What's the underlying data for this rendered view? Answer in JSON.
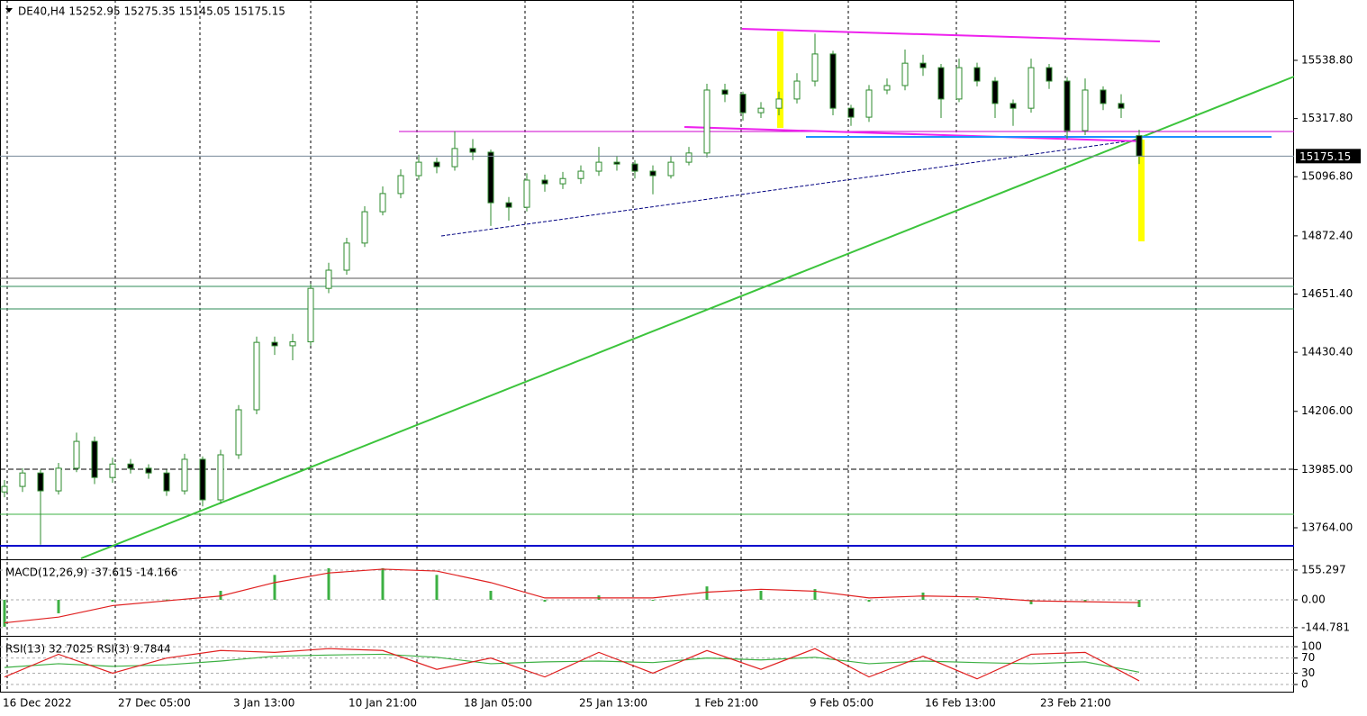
{
  "chart_data": [
    {
      "type": "candlestick",
      "title": "DE40,H4  15252.95 15275.35 15145.05 15175.15",
      "x_labels": [
        "16 Dec 2022",
        "27 Dec 05:00",
        "3 Jan 13:00",
        "10 Jan 21:00",
        "18 Jan 05:00",
        "25 Jan 13:00",
        "1 Feb 21:00",
        "9 Feb 05:00",
        "16 Feb 13:00",
        "23 Feb 21:00"
      ],
      "open": [
        13900,
        13921,
        13972,
        13904,
        13990,
        14092,
        13955,
        14006,
        13990,
        13972,
        13904,
        14024,
        13870,
        14041,
        14212,
        14468,
        14455,
        14470,
        14673,
        14742,
        14845,
        14964,
        15033,
        15101,
        15152,
        15135,
        15204,
        15190,
        14998,
        14981,
        15084,
        15070,
        15090,
        15118,
        15152,
        15145,
        15118,
        15101,
        15152,
        15187,
        15426,
        15410,
        15340,
        15357,
        15392,
        15460,
        15563,
        15357,
        15323,
        15426,
        15443,
        15528,
        15511,
        15392,
        15511,
        15460,
        15375,
        15357,
        15511,
        15460,
        15272,
        15426,
        15375,
        15252.95
      ],
      "high": [
        13945,
        13990,
        13985,
        14010,
        14125,
        14110,
        14030,
        14025,
        14005,
        13985,
        14045,
        14035,
        14060,
        14230,
        14490,
        14490,
        14500,
        14690,
        14770,
        14865,
        14985,
        15060,
        15125,
        15180,
        15170,
        15270,
        15240,
        15200,
        15020,
        15110,
        15105,
        15115,
        15140,
        15210,
        15175,
        15160,
        15140,
        15175,
        15210,
        15450,
        15450,
        15420,
        15380,
        15420,
        15490,
        15640,
        15575,
        15370,
        15445,
        15470,
        15580,
        15560,
        15525,
        15545,
        15530,
        15475,
        15390,
        15545,
        15525,
        15475,
        15470,
        15440,
        15410,
        15275.35
      ],
      "low": [
        13880,
        13900,
        13700,
        13890,
        13975,
        13930,
        13935,
        13970,
        13950,
        13885,
        13890,
        13845,
        13855,
        14025,
        14195,
        14420,
        14400,
        14455,
        14655,
        14725,
        14830,
        14950,
        15015,
        15085,
        15110,
        15120,
        15160,
        14910,
        14930,
        14965,
        15040,
        15050,
        15070,
        15100,
        15120,
        15090,
        15030,
        15090,
        15140,
        15170,
        15380,
        15310,
        15320,
        15330,
        15375,
        15440,
        15330,
        15290,
        15305,
        15410,
        15425,
        15480,
        15320,
        15380,
        15440,
        15320,
        15290,
        15340,
        15430,
        15240,
        15255,
        15350,
        15320,
        15145.05
      ],
      "close": [
        13921,
        13972,
        13904,
        13990,
        14092,
        13955,
        14006,
        13990,
        13972,
        13904,
        14024,
        13870,
        14041,
        14212,
        14468,
        14455,
        14470,
        14673,
        14742,
        14845,
        14964,
        15033,
        15101,
        15152,
        15135,
        15204,
        15190,
        14998,
        14981,
        15084,
        15070,
        15090,
        15118,
        15152,
        15145,
        15118,
        15101,
        15152,
        15187,
        15426,
        15410,
        15340,
        15357,
        15392,
        15460,
        15563,
        15357,
        15323,
        15426,
        15443,
        15528,
        15511,
        15392,
        15511,
        15460,
        15375,
        15357,
        15511,
        15460,
        15272,
        15426,
        15375,
        15357,
        15175.15
      ],
      "up_color": "#ffffff",
      "down_color": "#000000",
      "wick_color": "#2e8b2e",
      "current_price": 15175.15,
      "ylim": [
        13647.7,
        15767.9
      ],
      "yticks": [
        {
          "value": 15538.8,
          "label": "15538.80"
        },
        {
          "value": 15317.8,
          "label": "15317.80"
        },
        {
          "value": 15096.8,
          "label": "15096.80"
        },
        {
          "value": 14872.4,
          "label": "14872.40"
        },
        {
          "value": 14651.4,
          "label": "14651.40"
        },
        {
          "value": 14430.4,
          "label": "14430.40"
        },
        {
          "value": 14206,
          "label": "14206.00"
        },
        {
          "value": 13985,
          "label": "13985.00"
        },
        {
          "value": 13764,
          "label": "13764.00"
        }
      ]
    },
    {
      "type": "bar",
      "title": "MACD(12,26,9) -37.615 -14.166",
      "series": [
        {
          "style": "histogram",
          "color": "#3cb043",
          "values": [
            -140,
            -70,
            -10,
            2,
            47,
            130,
            165,
            165,
            130,
            47,
            -10,
            23,
            0,
            70,
            47,
            56,
            -10,
            38,
            10,
            -23,
            -10,
            -37.615
          ]
        },
        {
          "style": "line",
          "color": "#e02020",
          "values": [
            -120,
            -90,
            -30,
            -5,
            20,
            90,
            140,
            160,
            150,
            90,
            10,
            10,
            10,
            40,
            55,
            45,
            10,
            20,
            15,
            -5,
            -10,
            -14.166
          ]
        }
      ],
      "ylim": [
        -183,
        202
      ],
      "yticks": [
        155.297,
        {
          "value": 0,
          "label": "0.00"
        },
        -144.781
      ]
    },
    {
      "type": "line",
      "title": "RSI(13) 32.7025  RSI(3) 9.7844",
      "series": [
        {
          "color": "#3cb043",
          "values": [
            45,
            55,
            48,
            52,
            62,
            75,
            78,
            80,
            72,
            55,
            60,
            62,
            58,
            70,
            65,
            72,
            55,
            62,
            58,
            55,
            60,
            32.7025
          ]
        },
        {
          "color": "#e02020",
          "values": [
            20,
            80,
            30,
            70,
            90,
            85,
            95,
            90,
            40,
            70,
            20,
            85,
            30,
            90,
            40,
            95,
            20,
            75,
            15,
            80,
            85,
            9.7844
          ]
        }
      ],
      "ylim": [
        -19,
        124
      ],
      "yticks": [
        100,
        70,
        30,
        0
      ]
    }
  ]
}
